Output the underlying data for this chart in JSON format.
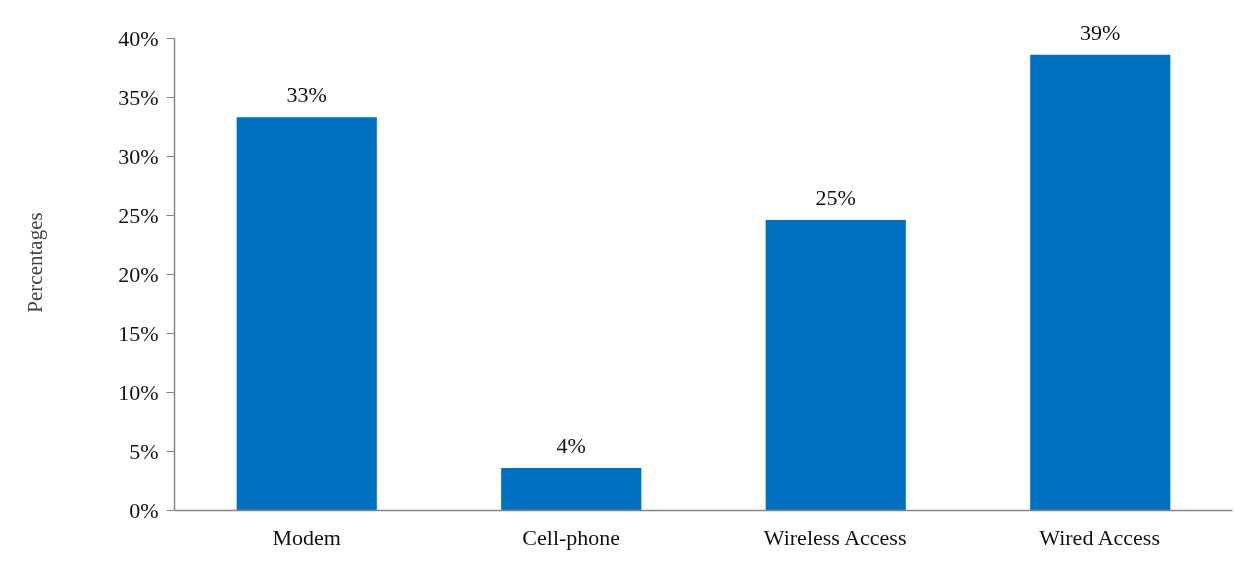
{
  "chart_data": {
    "type": "bar",
    "ylabel": "Percentages",
    "categories": [
      "Modem",
      "Cell-phone",
      "Wireless Access",
      "Wired Access"
    ],
    "values": [
      33.3,
      3.6,
      24.6,
      38.6
    ],
    "value_labels": [
      "33%",
      "4%",
      "25%",
      "39%"
    ],
    "color": "#0070c0",
    "ylim": [
      0,
      40
    ],
    "yticks": [
      {
        "value": 0,
        "label": "0%"
      },
      {
        "value": 5,
        "label": "5%"
      },
      {
        "value": 10,
        "label": "10%"
      },
      {
        "value": 15,
        "label": "15%"
      },
      {
        "value": 20,
        "label": "20%"
      },
      {
        "value": 25,
        "label": "25%"
      },
      {
        "value": 30,
        "label": "30%"
      },
      {
        "value": 35,
        "label": "35%"
      },
      {
        "value": 40,
        "label": "40%"
      }
    ]
  }
}
